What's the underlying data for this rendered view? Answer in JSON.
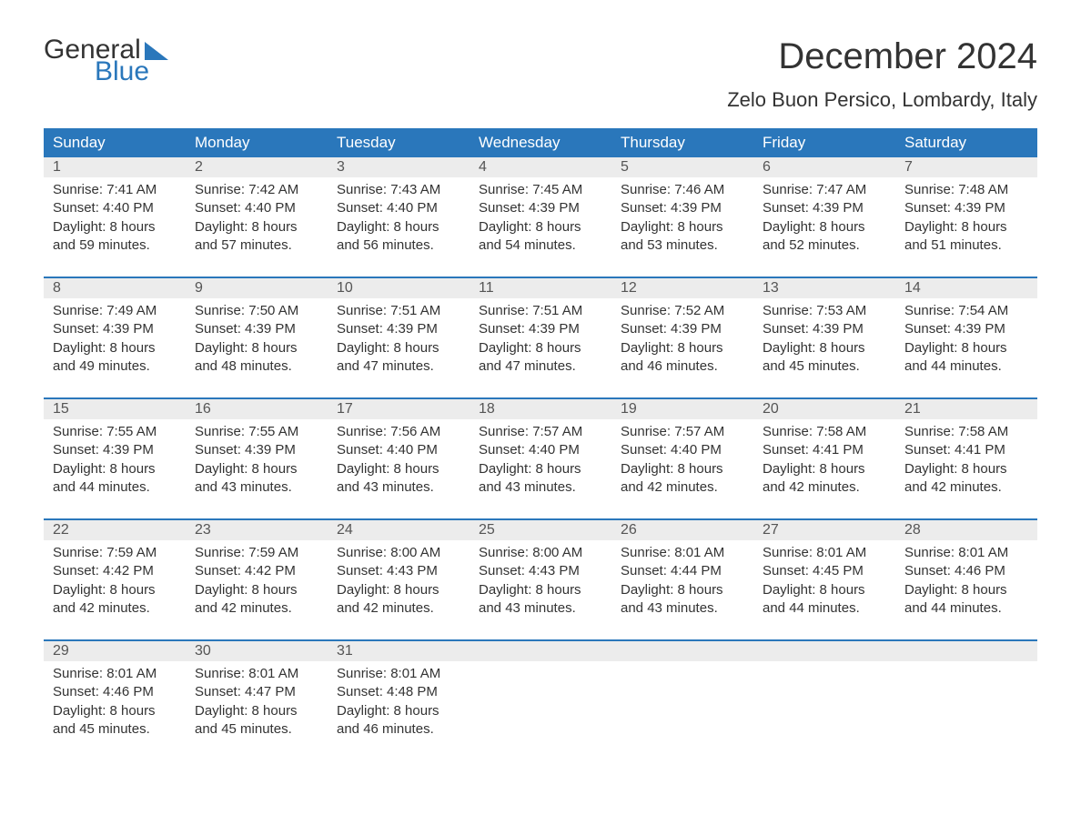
{
  "logo": {
    "word1": "General",
    "word2": "Blue"
  },
  "title": "December 2024",
  "location": "Zelo Buon Persico, Lombardy, Italy",
  "header_bg": "#2a77bb",
  "header_fg": "#ffffff",
  "daynum_bg": "#ececec",
  "week_border": "#2a77bb",
  "text_color": "#333333",
  "body_bg": "#ffffff",
  "font_family": "Arial, Helvetica, sans-serif",
  "title_fontsize": 40,
  "location_fontsize": 22,
  "header_fontsize": 17,
  "body_fontsize": 15,
  "days_of_week": [
    "Sunday",
    "Monday",
    "Tuesday",
    "Wednesday",
    "Thursday",
    "Friday",
    "Saturday"
  ],
  "weeks": [
    [
      {
        "n": "1",
        "sr": "Sunrise: 7:41 AM",
        "ss": "Sunset: 4:40 PM",
        "d1": "Daylight: 8 hours",
        "d2": "and 59 minutes."
      },
      {
        "n": "2",
        "sr": "Sunrise: 7:42 AM",
        "ss": "Sunset: 4:40 PM",
        "d1": "Daylight: 8 hours",
        "d2": "and 57 minutes."
      },
      {
        "n": "3",
        "sr": "Sunrise: 7:43 AM",
        "ss": "Sunset: 4:40 PM",
        "d1": "Daylight: 8 hours",
        "d2": "and 56 minutes."
      },
      {
        "n": "4",
        "sr": "Sunrise: 7:45 AM",
        "ss": "Sunset: 4:39 PM",
        "d1": "Daylight: 8 hours",
        "d2": "and 54 minutes."
      },
      {
        "n": "5",
        "sr": "Sunrise: 7:46 AM",
        "ss": "Sunset: 4:39 PM",
        "d1": "Daylight: 8 hours",
        "d2": "and 53 minutes."
      },
      {
        "n": "6",
        "sr": "Sunrise: 7:47 AM",
        "ss": "Sunset: 4:39 PM",
        "d1": "Daylight: 8 hours",
        "d2": "and 52 minutes."
      },
      {
        "n": "7",
        "sr": "Sunrise: 7:48 AM",
        "ss": "Sunset: 4:39 PM",
        "d1": "Daylight: 8 hours",
        "d2": "and 51 minutes."
      }
    ],
    [
      {
        "n": "8",
        "sr": "Sunrise: 7:49 AM",
        "ss": "Sunset: 4:39 PM",
        "d1": "Daylight: 8 hours",
        "d2": "and 49 minutes."
      },
      {
        "n": "9",
        "sr": "Sunrise: 7:50 AM",
        "ss": "Sunset: 4:39 PM",
        "d1": "Daylight: 8 hours",
        "d2": "and 48 minutes."
      },
      {
        "n": "10",
        "sr": "Sunrise: 7:51 AM",
        "ss": "Sunset: 4:39 PM",
        "d1": "Daylight: 8 hours",
        "d2": "and 47 minutes."
      },
      {
        "n": "11",
        "sr": "Sunrise: 7:51 AM",
        "ss": "Sunset: 4:39 PM",
        "d1": "Daylight: 8 hours",
        "d2": "and 47 minutes."
      },
      {
        "n": "12",
        "sr": "Sunrise: 7:52 AM",
        "ss": "Sunset: 4:39 PM",
        "d1": "Daylight: 8 hours",
        "d2": "and 46 minutes."
      },
      {
        "n": "13",
        "sr": "Sunrise: 7:53 AM",
        "ss": "Sunset: 4:39 PM",
        "d1": "Daylight: 8 hours",
        "d2": "and 45 minutes."
      },
      {
        "n": "14",
        "sr": "Sunrise: 7:54 AM",
        "ss": "Sunset: 4:39 PM",
        "d1": "Daylight: 8 hours",
        "d2": "and 44 minutes."
      }
    ],
    [
      {
        "n": "15",
        "sr": "Sunrise: 7:55 AM",
        "ss": "Sunset: 4:39 PM",
        "d1": "Daylight: 8 hours",
        "d2": "and 44 minutes."
      },
      {
        "n": "16",
        "sr": "Sunrise: 7:55 AM",
        "ss": "Sunset: 4:39 PM",
        "d1": "Daylight: 8 hours",
        "d2": "and 43 minutes."
      },
      {
        "n": "17",
        "sr": "Sunrise: 7:56 AM",
        "ss": "Sunset: 4:40 PM",
        "d1": "Daylight: 8 hours",
        "d2": "and 43 minutes."
      },
      {
        "n": "18",
        "sr": "Sunrise: 7:57 AM",
        "ss": "Sunset: 4:40 PM",
        "d1": "Daylight: 8 hours",
        "d2": "and 43 minutes."
      },
      {
        "n": "19",
        "sr": "Sunrise: 7:57 AM",
        "ss": "Sunset: 4:40 PM",
        "d1": "Daylight: 8 hours",
        "d2": "and 42 minutes."
      },
      {
        "n": "20",
        "sr": "Sunrise: 7:58 AM",
        "ss": "Sunset: 4:41 PM",
        "d1": "Daylight: 8 hours",
        "d2": "and 42 minutes."
      },
      {
        "n": "21",
        "sr": "Sunrise: 7:58 AM",
        "ss": "Sunset: 4:41 PM",
        "d1": "Daylight: 8 hours",
        "d2": "and 42 minutes."
      }
    ],
    [
      {
        "n": "22",
        "sr": "Sunrise: 7:59 AM",
        "ss": "Sunset: 4:42 PM",
        "d1": "Daylight: 8 hours",
        "d2": "and 42 minutes."
      },
      {
        "n": "23",
        "sr": "Sunrise: 7:59 AM",
        "ss": "Sunset: 4:42 PM",
        "d1": "Daylight: 8 hours",
        "d2": "and 42 minutes."
      },
      {
        "n": "24",
        "sr": "Sunrise: 8:00 AM",
        "ss": "Sunset: 4:43 PM",
        "d1": "Daylight: 8 hours",
        "d2": "and 42 minutes."
      },
      {
        "n": "25",
        "sr": "Sunrise: 8:00 AM",
        "ss": "Sunset: 4:43 PM",
        "d1": "Daylight: 8 hours",
        "d2": "and 43 minutes."
      },
      {
        "n": "26",
        "sr": "Sunrise: 8:01 AM",
        "ss": "Sunset: 4:44 PM",
        "d1": "Daylight: 8 hours",
        "d2": "and 43 minutes."
      },
      {
        "n": "27",
        "sr": "Sunrise: 8:01 AM",
        "ss": "Sunset: 4:45 PM",
        "d1": "Daylight: 8 hours",
        "d2": "and 44 minutes."
      },
      {
        "n": "28",
        "sr": "Sunrise: 8:01 AM",
        "ss": "Sunset: 4:46 PM",
        "d1": "Daylight: 8 hours",
        "d2": "and 44 minutes."
      }
    ],
    [
      {
        "n": "29",
        "sr": "Sunrise: 8:01 AM",
        "ss": "Sunset: 4:46 PM",
        "d1": "Daylight: 8 hours",
        "d2": "and 45 minutes."
      },
      {
        "n": "30",
        "sr": "Sunrise: 8:01 AM",
        "ss": "Sunset: 4:47 PM",
        "d1": "Daylight: 8 hours",
        "d2": "and 45 minutes."
      },
      {
        "n": "31",
        "sr": "Sunrise: 8:01 AM",
        "ss": "Sunset: 4:48 PM",
        "d1": "Daylight: 8 hours",
        "d2": "and 46 minutes."
      },
      null,
      null,
      null,
      null
    ]
  ]
}
